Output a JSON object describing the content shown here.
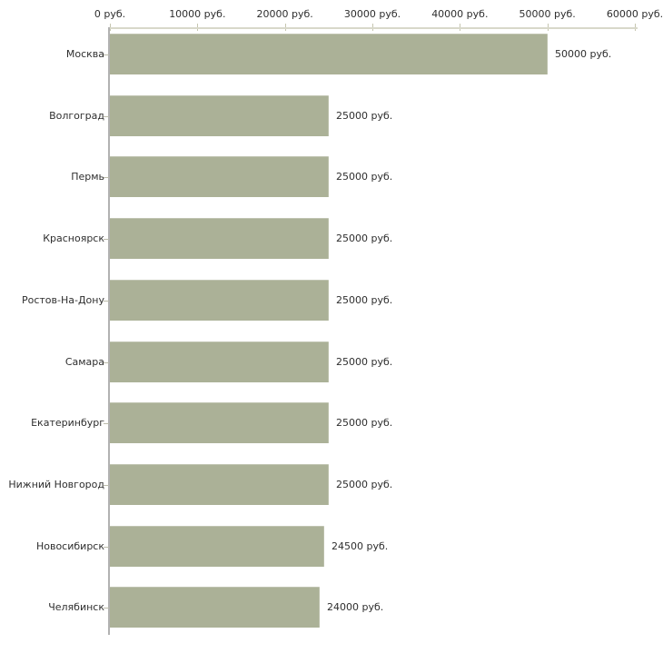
{
  "chart_data": {
    "type": "bar",
    "orientation": "horizontal",
    "title": "",
    "xlabel": "",
    "ylabel": "",
    "unit": "руб.",
    "categories": [
      "Москва",
      "Волгоград",
      "Пермь",
      "Красноярск",
      "Ростов-На-Дону",
      "Самара",
      "Екатеринбург",
      "Нижний Новгород",
      "Новосибирск",
      "Челябинск"
    ],
    "values": [
      50000,
      25000,
      25000,
      25000,
      25000,
      25000,
      25000,
      25000,
      24500,
      24000
    ],
    "value_labels": [
      "50000 руб.",
      "25000 руб.",
      "25000 руб.",
      "25000 руб.",
      "25000 руб.",
      "25000 руб.",
      "25000 руб.",
      "25000 руб.",
      "24500 руб.",
      "24000 руб."
    ],
    "x_ticks": [
      0,
      10000,
      20000,
      30000,
      40000,
      50000,
      60000
    ],
    "x_tick_labels": [
      "0 руб.",
      "10000 руб.",
      "20000 руб.",
      "30000 руб.",
      "40000 руб.",
      "50000 руб.",
      "60000 руб."
    ],
    "xlim": [
      0,
      60000
    ],
    "grid": false,
    "legend": null,
    "colors": {
      "bar": "#abb197",
      "background": "#ffffff",
      "text": "#2e2e2e",
      "x_axis_line": "#d8d8ca",
      "x_tick_mark": "#c6c6b0",
      "y_axis_line": "#b2b2b2",
      "y_tick_dash": "#bcbcac"
    }
  }
}
